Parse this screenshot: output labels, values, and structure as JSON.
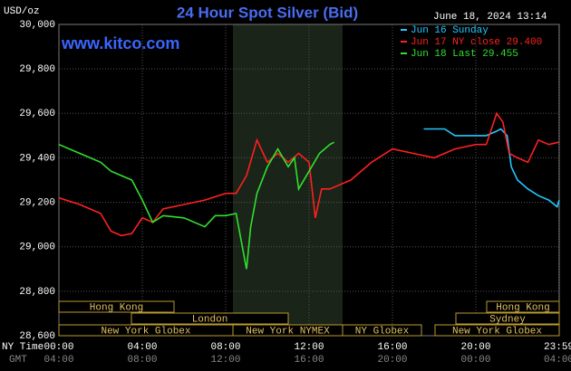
{
  "chart_data": {
    "type": "line",
    "title": "24 Hour Spot Silver (Bid)",
    "y_unit": "USD/oz",
    "timestamp": "June 18, 2024 13:14",
    "watermark": "www.kitco.com",
    "x_label": "NY Time",
    "x2_label": "GMT",
    "xlim": [
      0,
      24
    ],
    "xticks": [
      {
        "value": 0,
        "label": "00:00"
      },
      {
        "value": 4,
        "label": "04:00"
      },
      {
        "value": 8,
        "label": "08:00"
      },
      {
        "value": 12,
        "label": "12:00"
      },
      {
        "value": 16,
        "label": "16:00"
      },
      {
        "value": 20,
        "label": "20:00"
      },
      {
        "value": 23.98,
        "label": "23:59"
      }
    ],
    "x2ticks": [
      "04:00",
      "08:00",
      "12:00",
      "16:00",
      "20:00",
      "00:00",
      "04:00"
    ],
    "ylim": [
      28.6,
      30.0
    ],
    "yticks": [
      {
        "value": 28.6,
        "label": "28,600"
      },
      {
        "value": 28.8,
        "label": "28,800"
      },
      {
        "value": 29.0,
        "label": "29,000"
      },
      {
        "value": 29.2,
        "label": "29,200"
      },
      {
        "value": 29.4,
        "label": "29,400"
      },
      {
        "value": 29.6,
        "label": "29,600"
      },
      {
        "value": 29.8,
        "label": "29,800"
      },
      {
        "value": 30.0,
        "label": "30,000"
      }
    ],
    "grid": true,
    "sessions": [
      "Hong Kong",
      "London",
      "New York Globex",
      "New York NYMEX",
      "NY Globex",
      "Hong Kong",
      "Sydney",
      "New York Globex"
    ],
    "series": [
      {
        "name": "Jun 16 Sunday",
        "color": "#22c8ff",
        "x": [
          17.5,
          18.5,
          19,
          20,
          20.5,
          21,
          21.2,
          21.5,
          21.7,
          22,
          22.5,
          23,
          23.5,
          23.9,
          24
        ],
        "values": [
          29.53,
          29.53,
          29.5,
          29.5,
          29.5,
          29.52,
          29.53,
          29.5,
          29.36,
          29.3,
          29.26,
          29.23,
          29.21,
          29.18,
          29.21
        ]
      },
      {
        "name": "Jun 17 NY close 29.400",
        "color": "#ff2020",
        "x": [
          0,
          1,
          2,
          2.5,
          3,
          3.5,
          4,
          4.5,
          5,
          6,
          7,
          8,
          8.5,
          9,
          9.5,
          10,
          10.5,
          11,
          11.5,
          12,
          12.3,
          12.6,
          13,
          14,
          15,
          16,
          17,
          18,
          19,
          20,
          20.5,
          21,
          21.3,
          21.6,
          22,
          22.5,
          23,
          23.5,
          23.98
        ],
        "values": [
          29.22,
          29.19,
          29.15,
          29.07,
          29.05,
          29.06,
          29.13,
          29.11,
          29.17,
          29.19,
          29.21,
          29.24,
          29.24,
          29.32,
          29.48,
          29.38,
          29.42,
          29.38,
          29.42,
          29.38,
          29.13,
          29.26,
          29.26,
          29.3,
          29.38,
          29.44,
          29.42,
          29.4,
          29.44,
          29.46,
          29.46,
          29.6,
          29.56,
          29.42,
          29.4,
          29.38,
          29.48,
          29.46,
          29.47
        ]
      },
      {
        "name": "Jun 18 Last 29.455",
        "color": "#30e030",
        "x": [
          0,
          1,
          2,
          2.5,
          3,
          3.5,
          4,
          4.5,
          5,
          6,
          7,
          7.5,
          8,
          8.5,
          9,
          9.2,
          9.5,
          10,
          10.5,
          11,
          11.3,
          11.5,
          12,
          12.5,
          13,
          13.2
        ],
        "values": [
          29.46,
          29.42,
          29.38,
          29.34,
          29.32,
          29.3,
          29.21,
          29.11,
          29.14,
          29.13,
          29.09,
          29.14,
          29.14,
          29.15,
          28.9,
          29.09,
          29.24,
          29.36,
          29.44,
          29.36,
          29.4,
          29.26,
          29.34,
          29.42,
          29.46,
          29.47
        ]
      }
    ]
  }
}
